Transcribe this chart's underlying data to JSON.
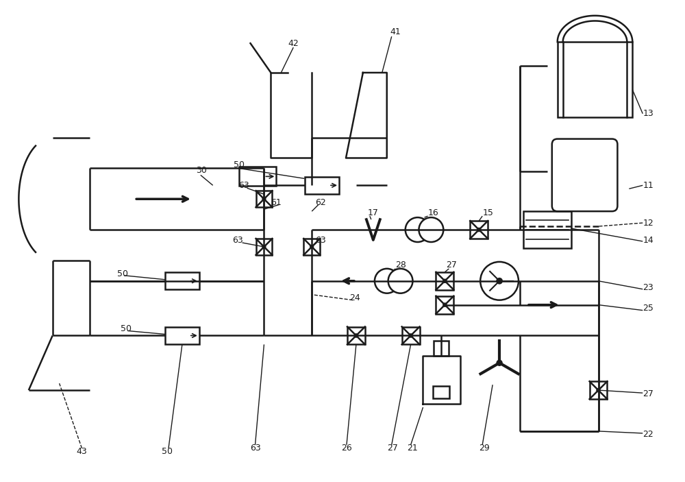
{
  "bg": "#ffffff",
  "lc": "#1a1a1a",
  "lw": 1.8,
  "fs": 9,
  "fig_w": 10.0,
  "fig_h": 7.03
}
